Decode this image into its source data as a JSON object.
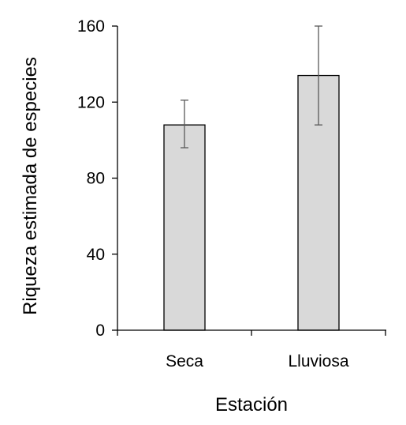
{
  "chart_data": {
    "type": "bar",
    "title": "",
    "xlabel": "Estación",
    "ylabel": "Riqueza estimada de especies",
    "categories": [
      "Seca",
      "Lluviosa"
    ],
    "series": [
      {
        "values": [
          108,
          134
        ],
        "error_low": [
          96,
          108
        ],
        "error_high": [
          121,
          160
        ]
      }
    ],
    "ylim": [
      0,
      160
    ],
    "yticks": [
      0,
      40,
      80,
      120,
      160
    ],
    "ytick_labels": [
      "0",
      "40",
      "80",
      "120",
      "160"
    ],
    "grid": false,
    "legend": "none",
    "colors": {
      "bar_fill": "#d9d9d9",
      "bar_stroke": "#000000",
      "error_bar": "#595959",
      "axis": "#000000"
    }
  }
}
